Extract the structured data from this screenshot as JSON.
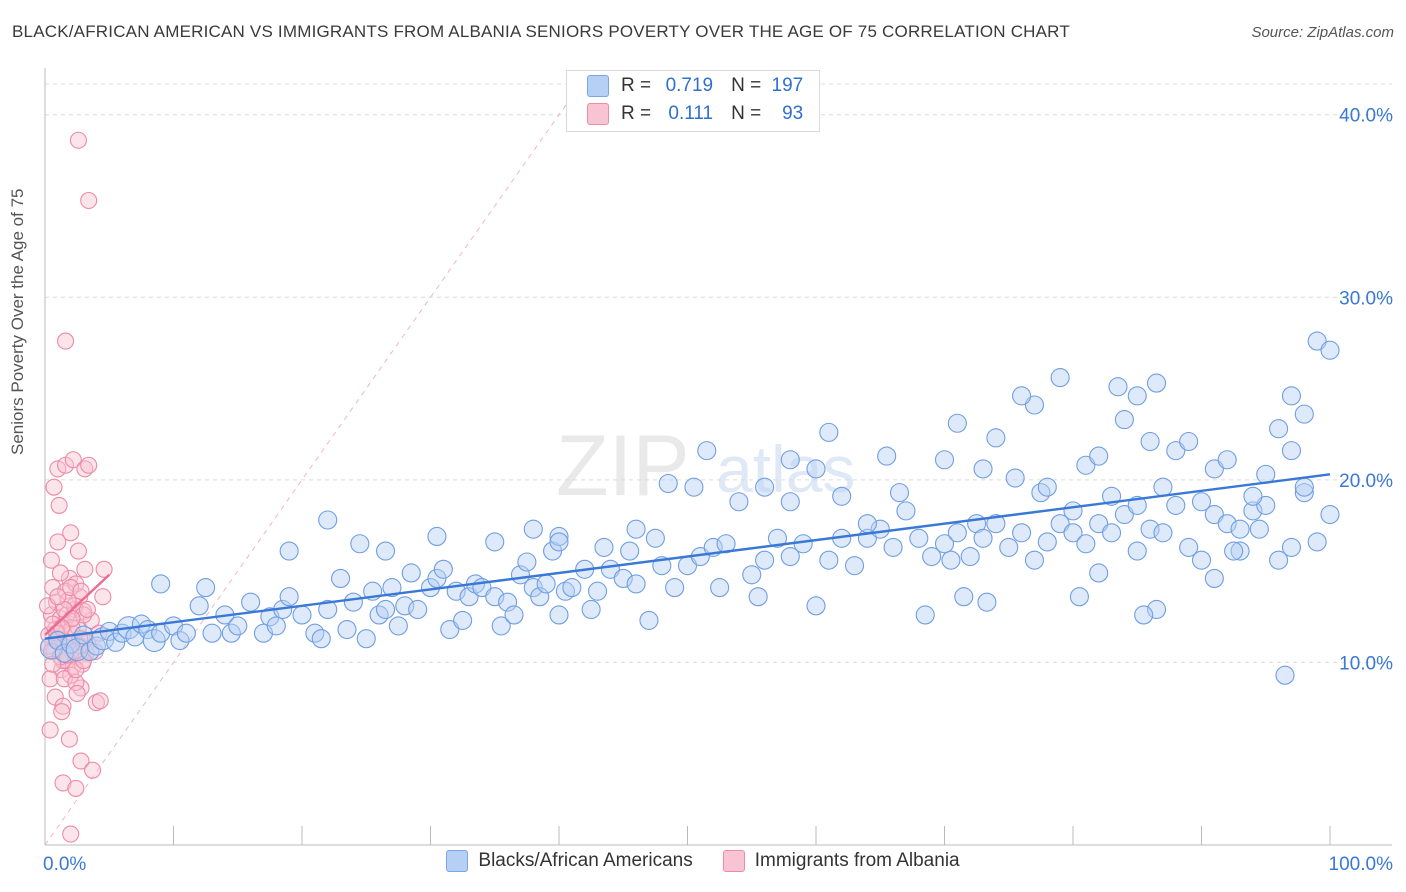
{
  "title": "BLACK/AFRICAN AMERICAN VS IMMIGRANTS FROM ALBANIA SENIORS POVERTY OVER THE AGE OF 75 CORRELATION CHART",
  "source": "Source: ZipAtlas.com",
  "watermark": {
    "zip": "ZIP",
    "atlas": "atlas"
  },
  "legend": {
    "r_label": "R =",
    "n_label": "N =",
    "rows": [
      {
        "r": "0.719",
        "n": "197",
        "color": "#b6d0f5"
      },
      {
        "r": "0.111",
        "n": "93",
        "color": "#f8c3d2"
      }
    ]
  },
  "bottom_legend": [
    "Blacks/African Americans",
    "Immigrants from Albania"
  ],
  "chart_data": {
    "type": "scatter",
    "title": "BLACK/AFRICAN AMERICAN VS IMMIGRANTS FROM ALBANIA SENIORS POVERTY OVER THE AGE OF 75 CORRELATION CHART",
    "xlabel": "",
    "ylabel": "Seniors Poverty Over the Age of 75",
    "xlim": [
      0,
      100
    ],
    "ylim": [
      0,
      40
    ],
    "x_tick_labels": [
      "0.0%",
      "100.0%"
    ],
    "y_ticks": [
      10,
      20,
      30,
      40
    ],
    "y_tick_labels": [
      "10.0%",
      "20.0%",
      "30.0%",
      "40.0%"
    ],
    "grid": true,
    "colors": {
      "blue": "#3a78d6",
      "blue_fill": "#b6d0f5",
      "pink": "#ec6b93",
      "pink_fill": "#f8c3d2"
    },
    "series": [
      {
        "name": "Blacks/African Americans",
        "r": 0.719,
        "n": 197,
        "trend": {
          "x": [
            0,
            100
          ],
          "y": [
            11.3,
            20.3
          ]
        },
        "points": [
          [
            0.5,
            10.8
          ],
          [
            1,
            11.2
          ],
          [
            1.5,
            10.5
          ],
          [
            2,
            11
          ],
          [
            2.5,
            10.7
          ],
          [
            3,
            11.5
          ],
          [
            3.5,
            10.6
          ],
          [
            4,
            10.9
          ],
          [
            4.5,
            11.3
          ],
          [
            5,
            11.7
          ],
          [
            5.5,
            11.1
          ],
          [
            6,
            11.6
          ],
          [
            6.5,
            11.9
          ],
          [
            7,
            11.4
          ],
          [
            7.5,
            12.1
          ],
          [
            8,
            11.8
          ],
          [
            8.5,
            11.2
          ],
          [
            9,
            11.6
          ],
          [
            10,
            12
          ],
          [
            10.5,
            11.2
          ],
          [
            11,
            11.6
          ],
          [
            12,
            13.1
          ],
          [
            12.5,
            14.1
          ],
          [
            13,
            11.6
          ],
          [
            14,
            12.6
          ],
          [
            14.5,
            11.6
          ],
          [
            15,
            12
          ],
          [
            16,
            13.3
          ],
          [
            17,
            11.6
          ],
          [
            17.5,
            12.5
          ],
          [
            18,
            12
          ],
          [
            18.5,
            12.9
          ],
          [
            19,
            13.6
          ],
          [
            20,
            12.6
          ],
          [
            21,
            11.6
          ],
          [
            21.5,
            11.3
          ],
          [
            22,
            12.9
          ],
          [
            23,
            14.6
          ],
          [
            23.5,
            11.8
          ],
          [
            24,
            13.3
          ],
          [
            24.5,
            16.5
          ],
          [
            25,
            11.3
          ],
          [
            25.5,
            13.9
          ],
          [
            26,
            12.6
          ],
          [
            26.5,
            12.9
          ],
          [
            27,
            14.1
          ],
          [
            27.5,
            12
          ],
          [
            28,
            13.1
          ],
          [
            28.5,
            14.9
          ],
          [
            29,
            12.9
          ],
          [
            30,
            14.1
          ],
          [
            30.5,
            14.6
          ],
          [
            31,
            15.1
          ],
          [
            31.5,
            11.8
          ],
          [
            32,
            13.9
          ],
          [
            32.5,
            12.3
          ],
          [
            33,
            13.6
          ],
          [
            33.5,
            14.3
          ],
          [
            34,
            14.1
          ],
          [
            35,
            13.6
          ],
          [
            35.5,
            12
          ],
          [
            36,
            13.3
          ],
          [
            36.5,
            12.6
          ],
          [
            37,
            14.8
          ],
          [
            37.5,
            15.5
          ],
          [
            38,
            14.1
          ],
          [
            38.5,
            13.6
          ],
          [
            39,
            14.3
          ],
          [
            39.5,
            16.1
          ],
          [
            40,
            12.6
          ],
          [
            40.5,
            13.9
          ],
          [
            41,
            14.1
          ],
          [
            42,
            15.1
          ],
          [
            42.5,
            12.9
          ],
          [
            43,
            13.9
          ],
          [
            43.5,
            16.3
          ],
          [
            44,
            15.1
          ],
          [
            45,
            14.6
          ],
          [
            45.5,
            16.1
          ],
          [
            46,
            14.3
          ],
          [
            47,
            12.3
          ],
          [
            47.5,
            16.8
          ],
          [
            48,
            15.3
          ],
          [
            49,
            14.1
          ],
          [
            50,
            15.3
          ],
          [
            51,
            15.8
          ],
          [
            52,
            16.3
          ],
          [
            52.5,
            14.1
          ],
          [
            53,
            16.5
          ],
          [
            54,
            18.8
          ],
          [
            55,
            14.8
          ],
          [
            55.5,
            13.6
          ],
          [
            56,
            15.6
          ],
          [
            57,
            16.8
          ],
          [
            58,
            15.8
          ],
          [
            59,
            16.5
          ],
          [
            60,
            13.1
          ],
          [
            61,
            15.6
          ],
          [
            62,
            16.8
          ],
          [
            63,
            15.3
          ],
          [
            64,
            16.8
          ],
          [
            65,
            17.3
          ],
          [
            66,
            16.3
          ],
          [
            67,
            18.3
          ],
          [
            68,
            16.8
          ],
          [
            69,
            15.8
          ],
          [
            70,
            16.5
          ],
          [
            70.5,
            15.6
          ],
          [
            71,
            17.1
          ],
          [
            72,
            15.8
          ],
          [
            72.5,
            17.6
          ],
          [
            73,
            16.8
          ],
          [
            74,
            17.6
          ],
          [
            75,
            16.3
          ],
          [
            76,
            17.1
          ],
          [
            77,
            15.6
          ],
          [
            77.5,
            19.3
          ],
          [
            78,
            16.6
          ],
          [
            79,
            17.6
          ],
          [
            80,
            17.1
          ],
          [
            81,
            16.5
          ],
          [
            82,
            17.6
          ],
          [
            83,
            17.1
          ],
          [
            84,
            18.1
          ],
          [
            85,
            16.1
          ],
          [
            86,
            17.3
          ],
          [
            87,
            17.1
          ],
          [
            88,
            18.6
          ],
          [
            89,
            16.3
          ],
          [
            90,
            15.6
          ],
          [
            91,
            18.1
          ],
          [
            92,
            17.6
          ],
          [
            93,
            16.1
          ],
          [
            94,
            18.3
          ],
          [
            95,
            18.6
          ],
          [
            96,
            15.6
          ],
          [
            97,
            16.3
          ],
          [
            98,
            19.3
          ],
          [
            99,
            16.6
          ],
          [
            100,
            18.1
          ],
          [
            22,
            17.8
          ],
          [
            30.5,
            16.9
          ],
          [
            40,
            16.9
          ],
          [
            48.5,
            19.8
          ],
          [
            50.5,
            19.6
          ],
          [
            51.5,
            21.6
          ],
          [
            58,
            18.8
          ],
          [
            60,
            20.6
          ],
          [
            61,
            22.6
          ],
          [
            64,
            17.6
          ],
          [
            65.5,
            21.3
          ],
          [
            66.5,
            19.3
          ],
          [
            70,
            21.1
          ],
          [
            71,
            23.1
          ],
          [
            73,
            20.6
          ],
          [
            74,
            22.3
          ],
          [
            75.5,
            20.1
          ],
          [
            77,
            24.1
          ],
          [
            78,
            19.6
          ],
          [
            80,
            18.3
          ],
          [
            81,
            20.8
          ],
          [
            82,
            21.3
          ],
          [
            83,
            19.1
          ],
          [
            84,
            23.3
          ],
          [
            85,
            18.6
          ],
          [
            86,
            22.1
          ],
          [
            87,
            19.6
          ],
          [
            88,
            21.6
          ],
          [
            89,
            22.1
          ],
          [
            90,
            18.8
          ],
          [
            91,
            20.6
          ],
          [
            92,
            21.1
          ],
          [
            93,
            17.3
          ],
          [
            94,
            19.1
          ],
          [
            95,
            20.3
          ],
          [
            96,
            22.8
          ],
          [
            97,
            21.6
          ],
          [
            98,
            23.6
          ],
          [
            99,
            27.6
          ],
          [
            100,
            27.1
          ],
          [
            79,
            25.6
          ],
          [
            76,
            24.6
          ],
          [
            83.5,
            25.1
          ],
          [
            85,
            24.6
          ],
          [
            86.5,
            25.3
          ],
          [
            96.5,
            9.3
          ],
          [
            73.3,
            13.3
          ],
          [
            71.5,
            13.6
          ],
          [
            68.5,
            12.6
          ],
          [
            40,
            16.6
          ],
          [
            38,
            17.3
          ],
          [
            46,
            17.3
          ],
          [
            56,
            19.6
          ],
          [
            62,
            19.1
          ],
          [
            9,
            14.3
          ],
          [
            19,
            16.1
          ],
          [
            26.5,
            16.1
          ],
          [
            35,
            16.6
          ],
          [
            58,
            21.1
          ],
          [
            86.5,
            12.9
          ],
          [
            85.5,
            12.6
          ],
          [
            91,
            14.6
          ],
          [
            92.5,
            16.1
          ],
          [
            94.5,
            17.3
          ],
          [
            97,
            24.6
          ],
          [
            98,
            19.6
          ],
          [
            80.5,
            13.6
          ],
          [
            82,
            14.9
          ]
        ]
      },
      {
        "name": "Immigrants from Albania",
        "r": 0.111,
        "n": 93,
        "trend": {
          "x": [
            0,
            5
          ],
          "y": [
            11.5,
            14.8
          ]
        },
        "points": [
          [
            0.3,
            11.5
          ],
          [
            0.5,
            12.6
          ],
          [
            0.7,
            10.6
          ],
          [
            0.9,
            13.3
          ],
          [
            1.1,
            11.1
          ],
          [
            1.3,
            9.6
          ],
          [
            1.5,
            12.1
          ],
          [
            1.7,
            10.1
          ],
          [
            1.9,
            14.6
          ],
          [
            2.1,
            11.6
          ],
          [
            2.3,
            12.9
          ],
          [
            2.5,
            10.3
          ],
          [
            2.7,
            13.6
          ],
          [
            2.9,
            11.3
          ],
          [
            3.1,
            15.1
          ],
          [
            0.4,
            9.1
          ],
          [
            0.6,
            14.1
          ],
          [
            0.8,
            8.1
          ],
          [
            1.0,
            16.6
          ],
          [
            1.2,
            12.4
          ],
          [
            1.4,
            7.6
          ],
          [
            1.6,
            13.9
          ],
          [
            1.8,
            10.8
          ],
          [
            2.0,
            17.1
          ],
          [
            2.2,
            9.8
          ],
          [
            2.4,
            14.3
          ],
          [
            2.6,
            11.9
          ],
          [
            2.8,
            8.6
          ],
          [
            3.0,
            12.8
          ],
          [
            3.2,
            10.5
          ],
          [
            0.2,
            13.1
          ],
          [
            0.5,
            15.6
          ],
          [
            0.8,
            11.8
          ],
          [
            1.1,
            18.6
          ],
          [
            1.4,
            10.1
          ],
          [
            1.7,
            12.6
          ],
          [
            2.0,
            9.3
          ],
          [
            2.3,
            13.1
          ],
          [
            2.6,
            16.1
          ],
          [
            2.9,
            9.9
          ],
          [
            3.3,
            11.1
          ],
          [
            3.6,
            12.3
          ],
          [
            3.9,
            10.6
          ],
          [
            4.2,
            11.6
          ],
          [
            4.5,
            13.6
          ],
          [
            0.3,
            10.9
          ],
          [
            0.6,
            12.1
          ],
          [
            0.9,
            11.3
          ],
          [
            1.2,
            14.9
          ],
          [
            1.5,
            9.1
          ],
          [
            1.8,
            13.4
          ],
          [
            2.1,
            11.9
          ],
          [
            2.4,
            8.9
          ],
          [
            2.7,
            10.9
          ],
          [
            3.0,
            12.6
          ],
          [
            0.4,
            6.3
          ],
          [
            0.7,
            19.6
          ],
          [
            1.0,
            20.6
          ],
          [
            1.3,
            7.3
          ],
          [
            1.6,
            20.8
          ],
          [
            1.9,
            5.8
          ],
          [
            2.2,
            21.1
          ],
          [
            2.5,
            8.3
          ],
          [
            2.8,
            4.6
          ],
          [
            3.1,
            20.6
          ],
          [
            3.4,
            20.8
          ],
          [
            3.7,
            4.1
          ],
          [
            4.0,
            7.8
          ],
          [
            4.3,
            7.9
          ],
          [
            1.4,
            3.4
          ],
          [
            2.4,
            3.1
          ],
          [
            2.0,
            0.6
          ],
          [
            2.6,
            38.6
          ],
          [
            3.4,
            35.3
          ],
          [
            1.6,
            27.6
          ],
          [
            0.5,
            10.6
          ],
          [
            0.9,
            11.6
          ],
          [
            1.2,
            10.3
          ],
          [
            1.5,
            12.9
          ],
          [
            1.8,
            11.1
          ],
          [
            2.1,
            12.4
          ],
          [
            2.4,
            9.6
          ],
          [
            2.7,
            11.3
          ],
          [
            3.0,
            10.1
          ],
          [
            3.3,
            12.9
          ],
          [
            0.6,
            9.9
          ],
          [
            1.0,
            13.6
          ],
          [
            1.3,
            11.9
          ],
          [
            1.7,
            10.4
          ],
          [
            2.0,
            14.1
          ],
          [
            2.3,
            10.6
          ],
          [
            4.6,
            15.1
          ],
          [
            2.8,
            13.9
          ]
        ]
      }
    ]
  }
}
